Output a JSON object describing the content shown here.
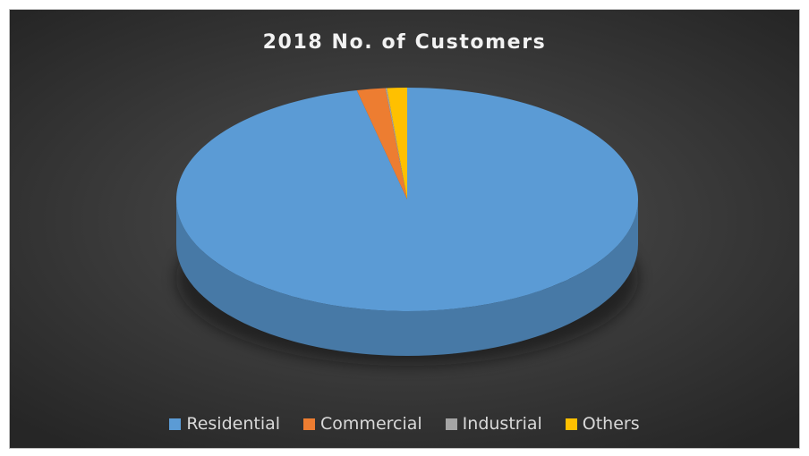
{
  "chart_data": {
    "type": "pie",
    "title": "2018 No. of Customers",
    "categories": [
      "Residential",
      "Commercial",
      "Industrial",
      "Others"
    ],
    "values": [
      96.5,
      2.0,
      0.1,
      1.4
    ],
    "colors": [
      "#5b9bd5",
      "#ed7d31",
      "#a5a5a5",
      "#ffc000"
    ],
    "legend_position": "bottom",
    "style": "3d"
  }
}
